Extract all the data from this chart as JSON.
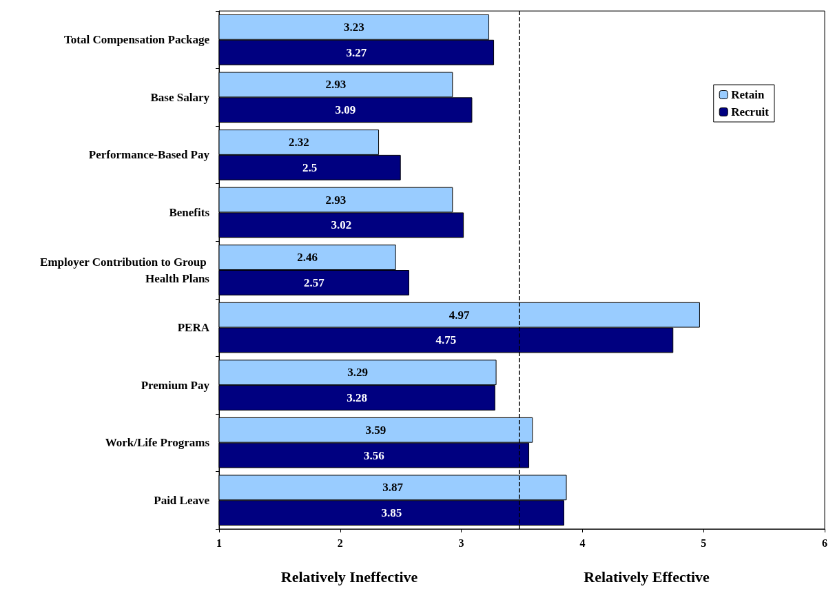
{
  "chart_data": {
    "type": "bar",
    "orientation": "horizontal",
    "categories": [
      "Total Compensation Package",
      "Base Salary",
      "Performance-Based Pay",
      "Benefits",
      "Employer Contribution to Group Health Plans",
      "PERA",
      "Premium Pay",
      "Work/Life Programs",
      "Paid Leave"
    ],
    "series": [
      {
        "name": "Retain",
        "color": "#99ccff",
        "values": [
          3.23,
          2.93,
          2.32,
          2.93,
          2.46,
          4.97,
          3.29,
          3.59,
          3.87
        ]
      },
      {
        "name": "Recruit",
        "color": "#000080",
        "values": [
          3.27,
          3.09,
          2.5,
          3.02,
          2.57,
          4.75,
          3.28,
          3.56,
          3.85
        ]
      }
    ],
    "xlim": [
      1,
      6
    ],
    "xticks": [
      1,
      2,
      3,
      4,
      5,
      6
    ],
    "ref_lines": [
      {
        "axis": "x",
        "value": 3.48,
        "line_style": "dashed",
        "color": "#000000"
      }
    ],
    "annotations": [
      "Relatively Ineffective",
      "Relatively Effective"
    ],
    "data_labels": true,
    "grid": false,
    "legend": "top right"
  }
}
